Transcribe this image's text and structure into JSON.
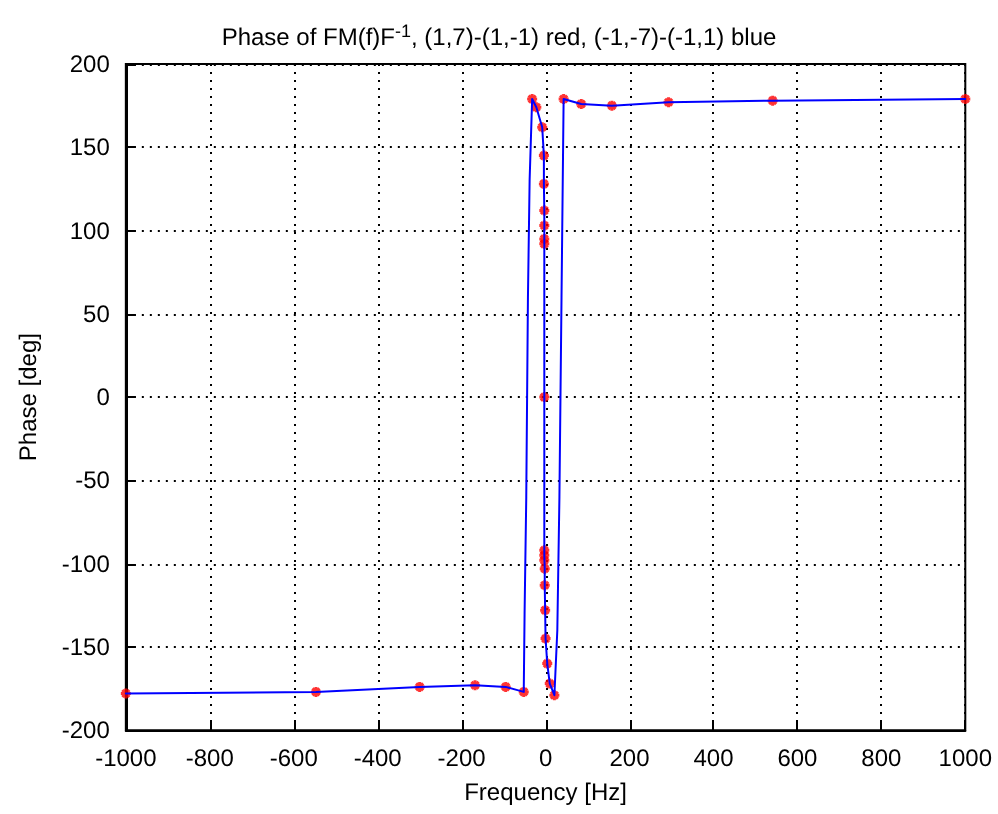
{
  "chart_data": {
    "type": "line",
    "title": "Phase of FM(f)F$^{-1}$, (1,7)-(1,-1) red, (-1,-7)-(-1,1) blue",
    "xlabel": "Frequency [Hz]",
    "ylabel": "Phase [deg]",
    "xlim": [
      -1000,
      1000
    ],
    "xticks": [
      -1000,
      -800,
      -600,
      -400,
      -200,
      0,
      200,
      400,
      600,
      800,
      1000
    ],
    "ylim": [
      -200,
      200
    ],
    "yticks": [
      -200,
      -150,
      -100,
      -50,
      0,
      50,
      100,
      150,
      200
    ],
    "grid": true,
    "series": [
      {
        "color": "#0000ff",
        "marker": "none",
        "line_style": "solid",
        "x": [
          -1000,
          -547,
          -300,
          -168,
          -95,
          -52,
          -50,
          -46,
          -42,
          -38,
          -32,
          -22,
          -8,
          -4,
          -4,
          -3,
          -3,
          -3,
          -3,
          -3,
          -2,
          -2,
          -1,
          0,
          4,
          10,
          21,
          28,
          33,
          38,
          43,
          85,
          158,
          293,
          541,
          1000
        ],
        "values": [
          -178,
          -177,
          -174,
          -173,
          -174,
          -177,
          -130,
          -60,
          60,
          130,
          179,
          174,
          162,
          145,
          128,
          112,
          103,
          95,
          0,
          -95,
          -103,
          -113,
          -128,
          -145,
          -160,
          -172,
          -179,
          -140,
          -60,
          60,
          179,
          176,
          175,
          177,
          178,
          179
        ]
      },
      {
        "type": "scatter",
        "color": "#ff0000",
        "marker": "cross",
        "x": [
          -1000,
          -547,
          -300,
          -168,
          -95,
          -52,
          -32,
          -22,
          -8,
          -4,
          -4,
          -3,
          -3,
          -3,
          -3,
          -3,
          -3,
          -3,
          -3,
          -2,
          -2,
          -1,
          0,
          4,
          10,
          21,
          43,
          85,
          158,
          293,
          541,
          1000
        ],
        "values": [
          -178,
          -177,
          -174,
          -173,
          -174,
          -177,
          179,
          174,
          162,
          145,
          128,
          112,
          103,
          95,
          92,
          0,
          -92,
          -95,
          -98,
          -103,
          -113,
          -128,
          -145,
          -160,
          -172,
          -179,
          179,
          176,
          175,
          177,
          178,
          179
        ]
      }
    ]
  }
}
